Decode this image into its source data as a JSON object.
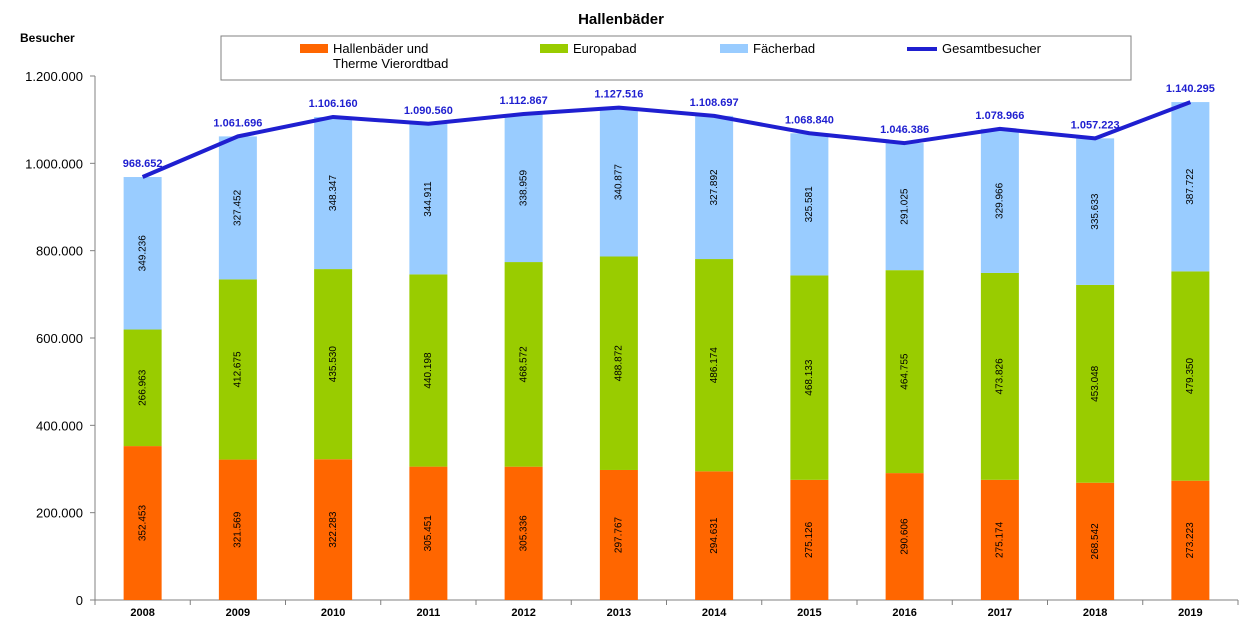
{
  "chart_data": {
    "type": "bar",
    "stacked": true,
    "title": "Hallenbäder",
    "xlabel": "",
    "ylabel": "Besucher",
    "ylim": [
      0,
      1200000
    ],
    "yticks": [
      0,
      200000,
      400000,
      600000,
      800000,
      1000000,
      1200000
    ],
    "ytick_labels": [
      "0",
      "200.000",
      "400.000",
      "600.000",
      "800.000",
      "1.000.000",
      "1.200.000"
    ],
    "grid": false,
    "legend_position": "top",
    "categories": [
      "2008",
      "2009",
      "2010",
      "2011",
      "2012",
      "2013",
      "2014",
      "2015",
      "2016",
      "2017",
      "2018",
      "2019"
    ],
    "series": [
      {
        "name": "Hallenbäder und Therme Vierordtbad",
        "legend_lines": [
          "Hallenbäder und",
          "Therme Vierordtbad"
        ],
        "color": "#ff6600",
        "values": [
          352453,
          321569,
          322283,
          305451,
          305336,
          297767,
          294631,
          275126,
          290606,
          275174,
          268542,
          273223
        ],
        "labels": [
          "352.453",
          "321.569",
          "322.283",
          "305.451",
          "305.336",
          "297.767",
          "294.631",
          "275.126",
          "290.606",
          "275.174",
          "268.542",
          "273.223"
        ]
      },
      {
        "name": "Europabad",
        "legend_lines": [
          "Europabad"
        ],
        "color": "#99cc00",
        "values": [
          266963,
          412675,
          435530,
          440198,
          468572,
          488872,
          486174,
          468133,
          464755,
          473826,
          453048,
          479350
        ],
        "labels": [
          "266.963",
          "412.675",
          "435.530",
          "440.198",
          "468.572",
          "488.872",
          "486.174",
          "468.133",
          "464.755",
          "473.826",
          "453.048",
          "479.350"
        ]
      },
      {
        "name": "Fächerbad",
        "legend_lines": [
          "Fächerbad"
        ],
        "color": "#99ccff",
        "values": [
          349236,
          327452,
          348347,
          344911,
          338959,
          340877,
          327892,
          325581,
          291025,
          329966,
          335633,
          387722
        ],
        "labels": [
          "349.236",
          "327.452",
          "348.347",
          "344.911",
          "338.959",
          "340.877",
          "327.892",
          "325.581",
          "291.025",
          "329.966",
          "335.633",
          "387.722"
        ]
      }
    ],
    "line_series": {
      "name": "Gesamtbesucher",
      "legend_lines": [
        "Gesamtbesucher"
      ],
      "color": "#1f1fd0",
      "values": [
        968652,
        1061696,
        1106160,
        1090560,
        1112867,
        1127516,
        1108697,
        1068840,
        1046386,
        1078966,
        1057223,
        1140295
      ],
      "labels": [
        "968.652",
        "1.061.696",
        "1.106.160",
        "1.090.560",
        "1.112.867",
        "1.127.516",
        "1.108.697",
        "1.068.840",
        "1.046.386",
        "1.078.966",
        "1.057.223",
        "1.140.295"
      ]
    }
  }
}
